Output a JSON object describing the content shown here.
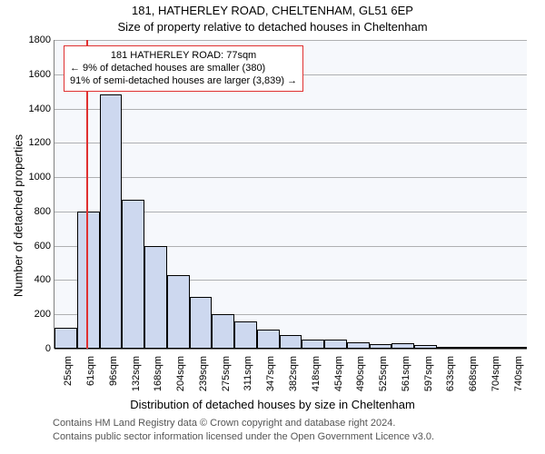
{
  "title": "181, HATHERLEY ROAD, CHELTENHAM, GL51 6EP",
  "subtitle": "Size of property relative to detached houses in Cheltenham",
  "xlabel": "Distribution of detached houses by size in Cheltenham",
  "ylabel": "Number of detached properties",
  "footer1": "Contains HM Land Registry data © Crown copyright and database right 2024.",
  "footer2": "Contains public sector information licensed under the Open Government Licence v3.0.",
  "chart": {
    "type": "histogram",
    "background_color": "#f6f8fc",
    "grid_color": "#808080",
    "ylim": [
      0,
      1800
    ],
    "ytick_step": 200,
    "bar_fill": "#cdd8ef",
    "bar_border": "#000000",
    "bin_width_sqm": 36,
    "categories": [
      "25sqm",
      "61sqm",
      "96sqm",
      "132sqm",
      "168sqm",
      "204sqm",
      "239sqm",
      "275sqm",
      "311sqm",
      "347sqm",
      "382sqm",
      "418sqm",
      "454sqm",
      "490sqm",
      "525sqm",
      "561sqm",
      "597sqm",
      "633sqm",
      "668sqm",
      "704sqm",
      "740sqm"
    ],
    "values": [
      120,
      800,
      1480,
      870,
      600,
      430,
      300,
      200,
      160,
      110,
      80,
      55,
      55,
      35,
      25,
      32,
      20,
      12,
      10,
      8,
      6
    ],
    "marker": {
      "value_sqm": 77,
      "color": "#e03030"
    },
    "annotation": {
      "border_color": "#e03030",
      "lines": [
        "181 HATHERLEY ROAD: 77sqm",
        "← 9% of detached houses are smaller (380)",
        "91% of semi-detached houses are larger (3,839) →"
      ]
    },
    "label_fontsize": 11
  }
}
